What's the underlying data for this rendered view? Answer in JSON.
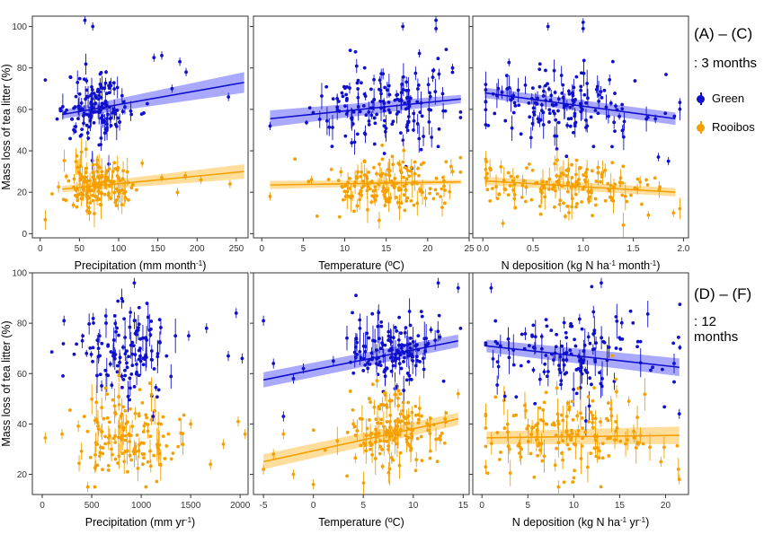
{
  "colors": {
    "green": "#1010cc",
    "rooibos": "#f5a000",
    "green_band": "#8c8cff",
    "rooibos_band": "#ffd37a"
  },
  "legend": {
    "green": "Green",
    "rooibos": "Rooibos"
  },
  "rows": [
    {
      "title": "(A) – (C)",
      "subtitle": ": 3 months"
    },
    {
      "title": "(D) – (F)",
      "subtitle": ": 12 months"
    }
  ],
  "chart_data": [
    {
      "type": "scatter",
      "panel": "A",
      "ylabel": "Mass loss of tea litter (%)",
      "xlabel": "Precipitation (mm month-1)",
      "xlim": [
        -10,
        265
      ],
      "ylim": [
        -2,
        105
      ],
      "xticks": [
        0,
        50,
        100,
        150,
        200,
        250
      ],
      "yticks": [
        0,
        20,
        40,
        60,
        80,
        100
      ],
      "fits": [
        {
          "name": "Green",
          "x": [
            28,
            260
          ],
          "y": [
            57.5,
            73
          ],
          "ci": [
            2,
            5
          ]
        },
        {
          "name": "Rooibos",
          "x": [
            28,
            260
          ],
          "y": [
            21.5,
            30
          ],
          "ci": [
            1.5,
            3.5
          ]
        }
      ],
      "clusters": [
        {
          "name": "Green",
          "n": 150,
          "seed": 11,
          "x_mean": 72,
          "x_sd": 22,
          "y_mean": 61,
          "y_sd": 9
        },
        {
          "name": "Rooibos",
          "n": 150,
          "seed": 12,
          "x_mean": 72,
          "x_sd": 22,
          "y_mean": 23,
          "y_sd": 7
        }
      ],
      "points": [
        {
          "name": "Green",
          "x": 57,
          "y": 103
        },
        {
          "name": "Green",
          "x": 67,
          "y": 100
        },
        {
          "name": "Green",
          "x": 155,
          "y": 86
        },
        {
          "name": "Green",
          "x": 178,
          "y": 83
        },
        {
          "name": "Green",
          "x": 186,
          "y": 78
        },
        {
          "name": "Green",
          "x": 240,
          "y": 66
        },
        {
          "name": "Green",
          "x": 145,
          "y": 85
        },
        {
          "name": "Green",
          "x": 168,
          "y": 70
        },
        {
          "name": "Rooibos",
          "x": 155,
          "y": 27
        },
        {
          "name": "Rooibos",
          "x": 185,
          "y": 28
        },
        {
          "name": "Rooibos",
          "x": 205,
          "y": 26
        },
        {
          "name": "Rooibos",
          "x": 242,
          "y": 24
        },
        {
          "name": "Rooibos",
          "x": 175,
          "y": 20
        },
        {
          "name": "Rooibos",
          "x": 130,
          "y": 34
        }
      ]
    },
    {
      "type": "scatter",
      "panel": "B",
      "xlabel": "Temperature (oC)",
      "xlim": [
        -1,
        25
      ],
      "ylim": [
        -2,
        105
      ],
      "xticks": [
        0,
        5,
        10,
        15,
        20,
        25
      ],
      "yticks": [
        0,
        20,
        40,
        60,
        80,
        100
      ],
      "fits": [
        {
          "name": "Green",
          "x": [
            1,
            24
          ],
          "y": [
            55.5,
            65
          ],
          "ci": [
            4,
            2
          ]
        },
        {
          "name": "Rooibos",
          "x": [
            1,
            24
          ],
          "y": [
            23.5,
            25
          ],
          "ci": [
            2,
            1
          ]
        }
      ],
      "clusters": [
        {
          "name": "Green",
          "n": 170,
          "seed": 21,
          "x_mean": 15,
          "x_sd": 4,
          "y_mean": 61,
          "y_sd": 9
        },
        {
          "name": "Rooibos",
          "n": 170,
          "seed": 22,
          "x_mean": 15,
          "x_sd": 4,
          "y_mean": 24,
          "y_sd": 7
        }
      ],
      "points": [
        {
          "name": "Green",
          "x": 17,
          "y": 100
        },
        {
          "name": "Green",
          "x": 21,
          "y": 103
        },
        {
          "name": "Green",
          "x": 21,
          "y": 99
        },
        {
          "name": "Green",
          "x": 19,
          "y": 87
        },
        {
          "name": "Green",
          "x": 23,
          "y": 80
        },
        {
          "name": "Green",
          "x": 1,
          "y": 52
        },
        {
          "name": "Rooibos",
          "x": 1,
          "y": 18
        },
        {
          "name": "Rooibos",
          "x": 6,
          "y": 26
        },
        {
          "name": "Rooibos",
          "x": 23,
          "y": 30
        }
      ]
    },
    {
      "type": "scatter",
      "panel": "C",
      "xlabel": "N deposition (kg N ha-1 month-1)",
      "xlim": [
        -0.1,
        2.05
      ],
      "ylim": [
        -2,
        105
      ],
      "xticks": [
        0.0,
        0.5,
        1.0,
        1.5,
        2.0
      ],
      "xticklabels": [
        "0.0",
        "0.5",
        "1.0",
        "1.5",
        "2.0"
      ],
      "yticks": [
        0,
        20,
        40,
        60,
        80,
        100
      ],
      "fits": [
        {
          "name": "Green",
          "x": [
            0.02,
            1.92
          ],
          "y": [
            68,
            55.5
          ],
          "ci": [
            2.5,
            3
          ]
        },
        {
          "name": "Rooibos",
          "x": [
            0.02,
            1.92
          ],
          "y": [
            25.5,
            20
          ],
          "ci": [
            2,
            2
          ]
        }
      ],
      "clusters": [
        {
          "name": "Green",
          "n": 160,
          "seed": 31,
          "x_mean": 0.85,
          "x_sd": 0.42,
          "y_mean": 61,
          "y_sd": 9
        },
        {
          "name": "Rooibos",
          "n": 160,
          "seed": 32,
          "x_mean": 0.85,
          "x_sd": 0.42,
          "y_mean": 23,
          "y_sd": 7
        }
      ],
      "points": [
        {
          "name": "Green",
          "x": 0.65,
          "y": 100
        },
        {
          "name": "Green",
          "x": 1.0,
          "y": 102
        },
        {
          "name": "Green",
          "x": 1.0,
          "y": 99
        },
        {
          "name": "Green",
          "x": 1.75,
          "y": 37
        },
        {
          "name": "Green",
          "x": 1.85,
          "y": 35
        },
        {
          "name": "Rooibos",
          "x": 1.9,
          "y": 10
        },
        {
          "name": "Rooibos",
          "x": 1.65,
          "y": 9
        },
        {
          "name": "Rooibos",
          "x": 0.2,
          "y": 5
        }
      ]
    },
    {
      "type": "scatter",
      "panel": "D",
      "ylabel": "Mass loss of tea litter (%)",
      "xlabel": "Precipitation (mm yr-1)",
      "xlim": [
        -100,
        2080
      ],
      "ylim": [
        12,
        100
      ],
      "xticks": [
        0,
        500,
        1000,
        1500,
        2000
      ],
      "yticks": [
        20,
        40,
        60,
        80,
        100
      ],
      "fits": [],
      "clusters": [
        {
          "name": "Green",
          "n": 130,
          "seed": 41,
          "x_mean": 850,
          "x_sd": 240,
          "y_mean": 68,
          "y_sd": 9
        },
        {
          "name": "Rooibos",
          "n": 150,
          "seed": 42,
          "x_mean": 850,
          "x_sd": 260,
          "y_mean": 35,
          "y_sd": 8
        }
      ],
      "points": [
        {
          "name": "Green",
          "x": 220,
          "y": 81
        },
        {
          "name": "Green",
          "x": 1480,
          "y": 75
        },
        {
          "name": "Green",
          "x": 1660,
          "y": 78
        },
        {
          "name": "Green",
          "x": 1880,
          "y": 67
        },
        {
          "name": "Green",
          "x": 1960,
          "y": 84
        },
        {
          "name": "Green",
          "x": 2020,
          "y": 66
        },
        {
          "name": "Green",
          "x": 1120,
          "y": 43
        },
        {
          "name": "Green",
          "x": 930,
          "y": 96
        },
        {
          "name": "Rooibos",
          "x": 200,
          "y": 36
        },
        {
          "name": "Rooibos",
          "x": 1500,
          "y": 40
        },
        {
          "name": "Rooibos",
          "x": 1830,
          "y": 32
        },
        {
          "name": "Rooibos",
          "x": 1980,
          "y": 41
        },
        {
          "name": "Rooibos",
          "x": 1700,
          "y": 24
        },
        {
          "name": "Rooibos",
          "x": 2050,
          "y": 36
        },
        {
          "name": "Rooibos",
          "x": 460,
          "y": 15
        }
      ]
    },
    {
      "type": "scatter",
      "panel": "E",
      "xlabel": "Temperature (oC)",
      "xlim": [
        -6,
        15.6
      ],
      "ylim": [
        12,
        100
      ],
      "xticks": [
        -5,
        0,
        5,
        10,
        15
      ],
      "yticks": [
        20,
        40,
        60,
        80,
        100
      ],
      "fits": [
        {
          "name": "Green",
          "x": [
            -5,
            14.5
          ],
          "y": [
            57.5,
            73
          ],
          "ci": [
            3,
            2.5
          ]
        },
        {
          "name": "Rooibos",
          "x": [
            -5,
            14.5
          ],
          "y": [
            25,
            42
          ],
          "ci": [
            3,
            2.5
          ]
        }
      ],
      "clusters": [
        {
          "name": "Green",
          "n": 150,
          "seed": 51,
          "x_mean": 8,
          "x_sd": 2.5,
          "y_mean": 69,
          "y_sd": 8
        },
        {
          "name": "Rooibos",
          "n": 160,
          "seed": 52,
          "x_mean": 8,
          "x_sd": 2.5,
          "y_mean": 37,
          "y_sd": 8
        }
      ],
      "points": [
        {
          "name": "Green",
          "x": -3,
          "y": 43
        },
        {
          "name": "Green",
          "x": -4,
          "y": 64
        },
        {
          "name": "Green",
          "x": -5,
          "y": 81
        },
        {
          "name": "Green",
          "x": -2,
          "y": 58
        },
        {
          "name": "Green",
          "x": -1,
          "y": 62
        },
        {
          "name": "Green",
          "x": 2,
          "y": 65
        },
        {
          "name": "Green",
          "x": 14.5,
          "y": 94
        },
        {
          "name": "Green",
          "x": 12.5,
          "y": 96
        },
        {
          "name": "Rooibos",
          "x": -3,
          "y": 36
        },
        {
          "name": "Rooibos",
          "x": -4,
          "y": 28
        },
        {
          "name": "Rooibos",
          "x": -5,
          "y": 22
        },
        {
          "name": "Rooibos",
          "x": -2,
          "y": 20
        },
        {
          "name": "Rooibos",
          "x": 0,
          "y": 16
        },
        {
          "name": "Rooibos",
          "x": 4,
          "y": 40
        },
        {
          "name": "Rooibos",
          "x": 14.5,
          "y": 52
        }
      ]
    },
    {
      "type": "scatter",
      "panel": "F",
      "xlabel": "N deposition (kg N ha-1 yr-1)",
      "xlim": [
        -1,
        22.5
      ],
      "ylim": [
        12,
        100
      ],
      "xticks": [
        0,
        5,
        10,
        15,
        20
      ],
      "yticks": [
        20,
        40,
        60,
        80,
        100
      ],
      "fits": [
        {
          "name": "Green",
          "x": [
            0.5,
            21.5
          ],
          "y": [
            71,
            62.5
          ],
          "ci": [
            2.5,
            3.5
          ]
        },
        {
          "name": "Rooibos",
          "x": [
            0.5,
            21.5
          ],
          "y": [
            34.5,
            35.5
          ],
          "ci": [
            2.5,
            3.5
          ]
        }
      ],
      "clusters": [
        {
          "name": "Green",
          "n": 140,
          "seed": 61,
          "x_mean": 10,
          "x_sd": 4.5,
          "y_mean": 68,
          "y_sd": 9
        },
        {
          "name": "Rooibos",
          "n": 160,
          "seed": 62,
          "x_mean": 10,
          "x_sd": 4.5,
          "y_mean": 35,
          "y_sd": 8
        }
      ],
      "points": [
        {
          "name": "Green",
          "x": 1,
          "y": 94
        },
        {
          "name": "Green",
          "x": 2.5,
          "y": 51
        },
        {
          "name": "Green",
          "x": 21.5,
          "y": 44
        },
        {
          "name": "Green",
          "x": 13,
          "y": 96
        },
        {
          "name": "Rooibos",
          "x": 21.5,
          "y": 18
        },
        {
          "name": "Rooibos",
          "x": 19.5,
          "y": 25
        },
        {
          "name": "Rooibos",
          "x": 16,
          "y": 49
        },
        {
          "name": "Rooibos",
          "x": 3,
          "y": 30
        }
      ]
    }
  ]
}
